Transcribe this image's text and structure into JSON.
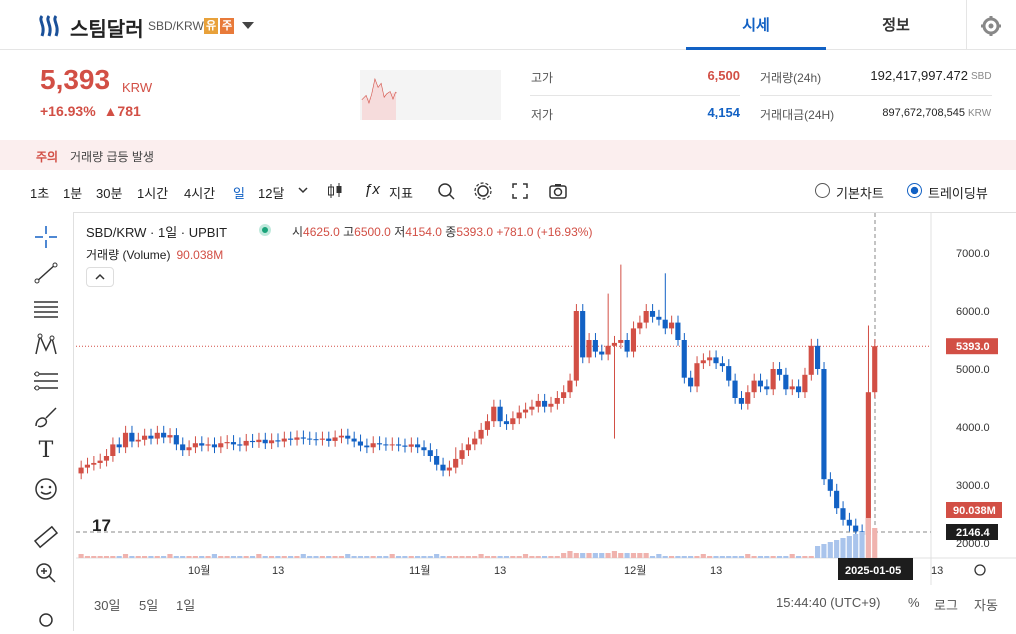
{
  "header": {
    "coin_name": "스팀달러",
    "symbol": "SBD/KRW",
    "badge1": "유",
    "badge2": "주",
    "tab_price": "시세",
    "tab_info": "정보"
  },
  "summary": {
    "price": "5,393",
    "unit": "KRW",
    "change_pct": "+16.93%",
    "change_abs": "▲781",
    "high_label": "고가",
    "high_value": "6,500",
    "low_label": "저가",
    "low_value": "4,154",
    "vol_label": "거래량(24h)",
    "vol_value": "192,417,997.472",
    "vol_unit": "SBD",
    "amt_label": "거래대금(24H)",
    "amt_value": "897,672,708,545",
    "amt_unit": "KRW"
  },
  "warning": {
    "label": "주의",
    "text": "거래량 급등 발생"
  },
  "toolbar": {
    "intervals": [
      "1초",
      "1분",
      "30분",
      "1시간",
      "4시간",
      "일",
      "12달"
    ],
    "indicator": "지표",
    "basic_chart": "기본차트",
    "trading_view": "트레이딩뷰"
  },
  "legend": {
    "title": "SBD/KRW · 1일 · UPBIT",
    "o_label": "시",
    "o": "4625.0",
    "h_label": "고",
    "h": "6500.0",
    "l_label": "저",
    "l": "4154.0",
    "c_label": "종",
    "c": "5393.0",
    "chg": "+781.0 (+16.93%)",
    "volume_label": "거래량 (Volume)",
    "volume_value": "90.038M",
    "tv": "17"
  },
  "chart_data": {
    "type": "candlestick",
    "y_ticks": [
      "7000.0",
      "6000.0",
      "5000.0",
      "4000.0",
      "3000.0",
      "2000.0"
    ],
    "x_ticks": [
      "10월",
      "13",
      "11월",
      "13",
      "12월",
      "13",
      "13"
    ],
    "price_tag": "5393.0",
    "volume_tag": "90.038M",
    "cross_tag": "2146.4",
    "date_tag": "2025-01-05",
    "colors": {
      "up": "#d24f45",
      "down": "#1261c4"
    }
  },
  "bottom": {
    "ranges": [
      "30일",
      "5일",
      "1일"
    ],
    "time": "15:44:40 (UTC+9)",
    "pct": "%",
    "log": "로그",
    "auto": "자동"
  }
}
